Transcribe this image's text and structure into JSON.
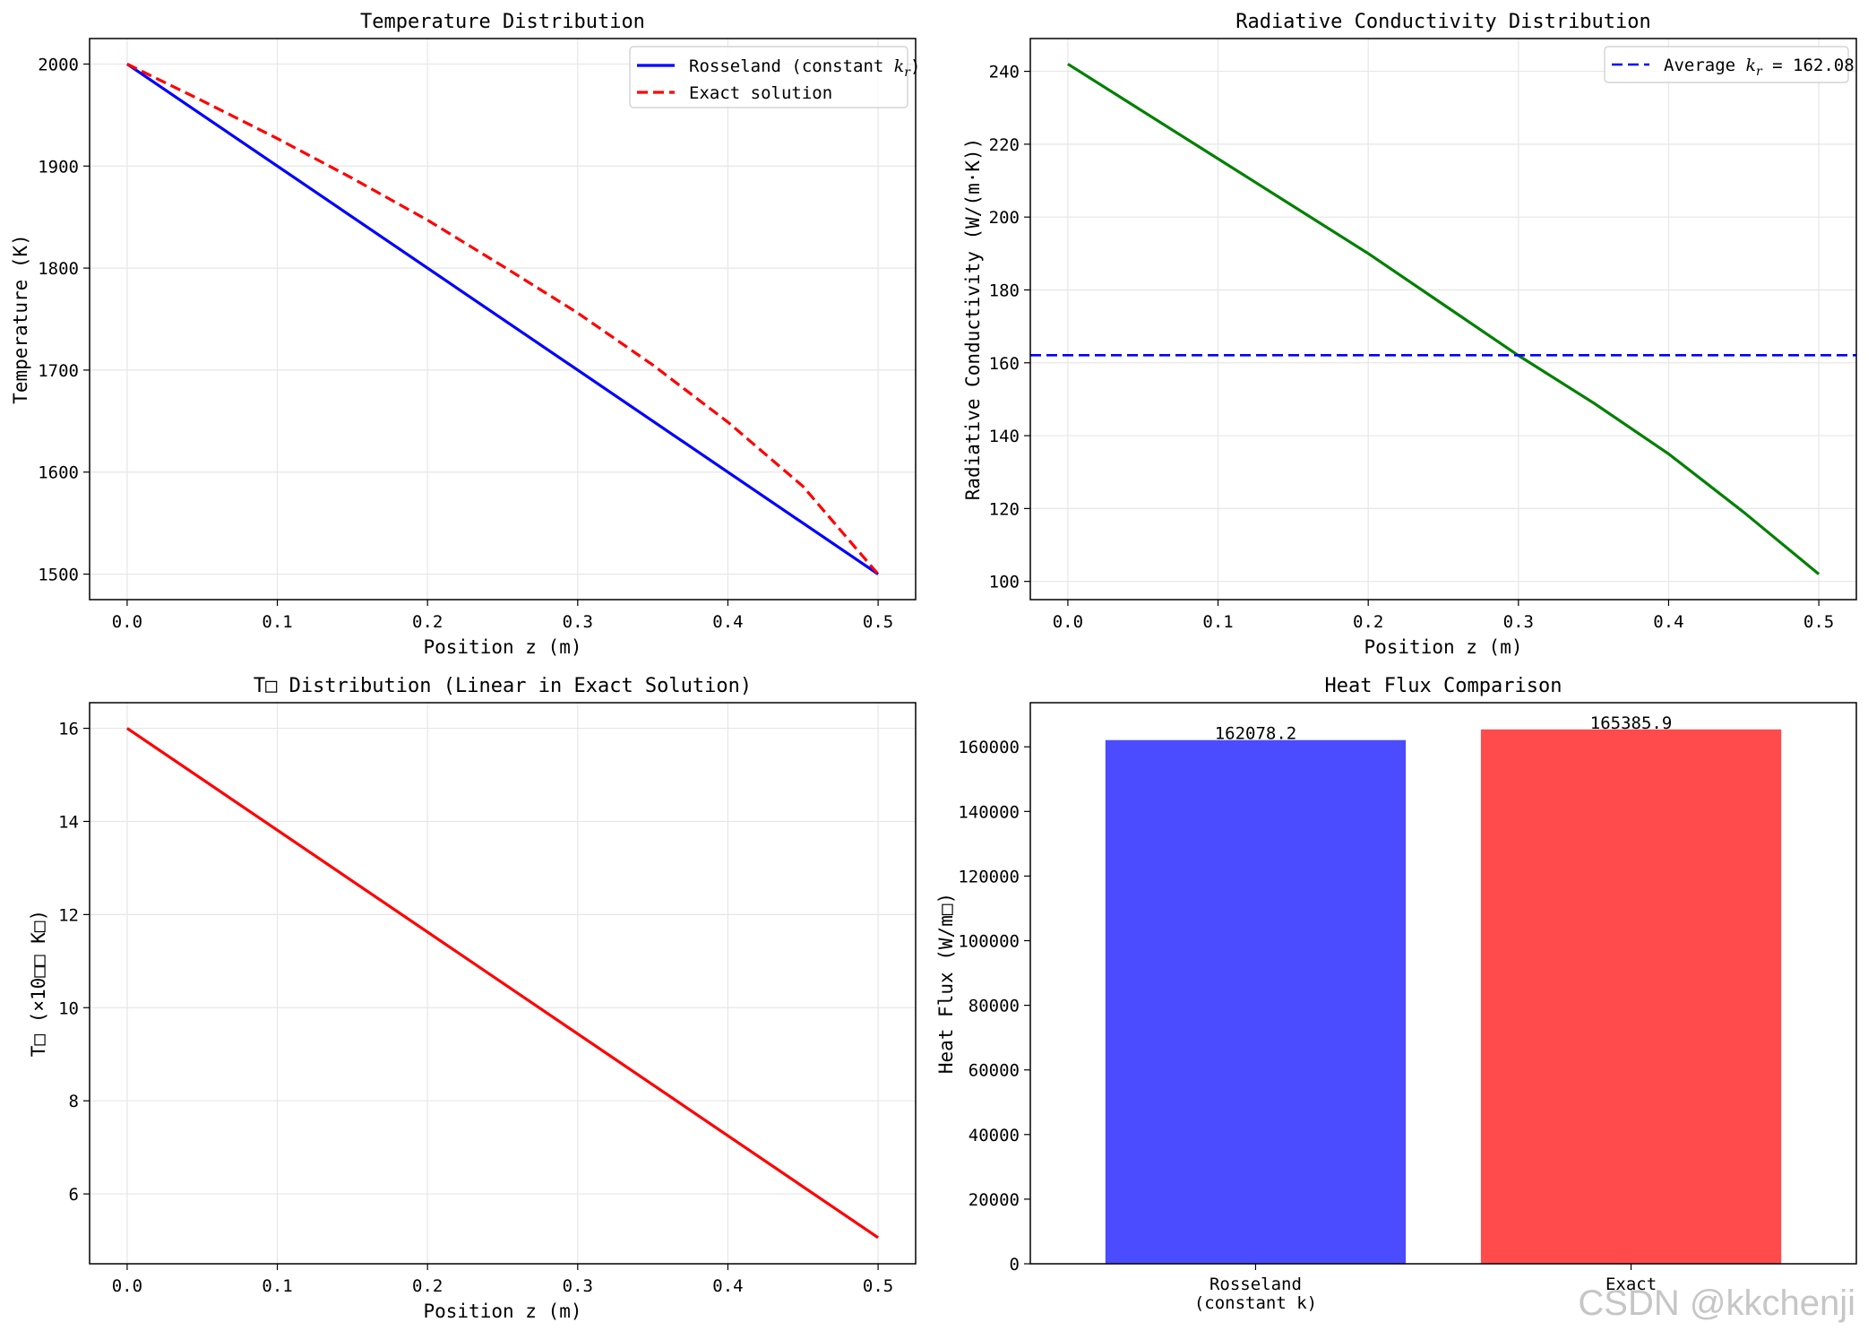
{
  "watermark": "CSDN @kkchenji",
  "colors": {
    "rosseland": "#0000ff",
    "exact": "#ff0000",
    "kr": "#008000",
    "avg": "#0000ff",
    "t4": "#ff0000",
    "bar_rosseland": "#4b4bff",
    "bar_exact": "#ff4b4b"
  },
  "chart_data": [
    {
      "type": "line",
      "title": "Temperature Distribution",
      "xlabel": "Position z (m)",
      "ylabel": "Temperature (K)",
      "xlim": [
        -0.025,
        0.525
      ],
      "ylim": [
        1475,
        2025
      ],
      "xticks": [
        0.0,
        0.1,
        0.2,
        0.3,
        0.4,
        0.5
      ],
      "xtick_labels": [
        "0.0",
        "0.1",
        "0.2",
        "0.3",
        "0.4",
        "0.5"
      ],
      "yticks": [
        1500,
        1600,
        1700,
        1800,
        1900,
        2000
      ],
      "ytick_labels": [
        "1500",
        "1600",
        "1700",
        "1800",
        "1900",
        "2000"
      ],
      "grid": true,
      "legend_position": "top-right",
      "series": [
        {
          "name": "Rosseland (constant k_r)",
          "legend_prefix": "Rosseland (constant ",
          "legend_math": "k",
          "legend_sub": "r",
          "legend_suffix": ")",
          "style": "solid",
          "x": [
            0.0,
            0.5
          ],
          "y": [
            2000,
            1500
          ]
        },
        {
          "name": "Exact solution",
          "style": "dashed",
          "x": [
            0.0,
            0.05,
            0.1,
            0.15,
            0.2,
            0.25,
            0.3,
            0.35,
            0.4,
            0.45,
            0.5
          ],
          "y": [
            2000,
            1964,
            1927,
            1888,
            1847,
            1802,
            1756,
            1705,
            1649,
            1586,
            1500
          ]
        }
      ]
    },
    {
      "type": "line",
      "title": "Radiative Conductivity Distribution",
      "xlabel": "Position z (m)",
      "ylabel": "Radiative Conductivity (W/(m·K))",
      "xlim": [
        -0.025,
        0.525
      ],
      "ylim": [
        95,
        249
      ],
      "xticks": [
        0.0,
        0.1,
        0.2,
        0.3,
        0.4,
        0.5
      ],
      "xtick_labels": [
        "0.0",
        "0.1",
        "0.2",
        "0.3",
        "0.4",
        "0.5"
      ],
      "yticks": [
        100,
        120,
        140,
        160,
        180,
        200,
        220,
        240
      ],
      "ytick_labels": [
        "100",
        "120",
        "140",
        "160",
        "180",
        "200",
        "220",
        "240"
      ],
      "grid": true,
      "legend_position": "top-right",
      "series": [
        {
          "name": "k_r",
          "style": "solid",
          "x": [
            0.0,
            0.05,
            0.1,
            0.15,
            0.2,
            0.25,
            0.3,
            0.35,
            0.4,
            0.45,
            0.5
          ],
          "y": [
            242,
            229,
            216,
            203,
            190,
            176,
            162,
            149,
            135,
            119,
            102
          ]
        }
      ],
      "hline": {
        "name": "Average k_r = 162.08",
        "legend_prefix": "Average ",
        "legend_math": "k",
        "legend_sub": "r",
        "legend_suffix": " = 162.08",
        "style": "dashed",
        "y": 162.08
      }
    },
    {
      "type": "line",
      "title": "T⁴ Distribution (Linear in Exact Solution)",
      "title_display": "T□ Distribution (Linear in Exact Solution)",
      "xlabel": "Position z (m)",
      "ylabel": "T⁴ (×10¹² K⁴)",
      "ylabel_display": "T□ (×10□□ K□)",
      "xlim": [
        -0.025,
        0.525
      ],
      "ylim": [
        4.5,
        16.55
      ],
      "xticks": [
        0.0,
        0.1,
        0.2,
        0.3,
        0.4,
        0.5
      ],
      "xtick_labels": [
        "0.0",
        "0.1",
        "0.2",
        "0.3",
        "0.4",
        "0.5"
      ],
      "yticks": [
        6,
        8,
        10,
        12,
        14,
        16
      ],
      "ytick_labels": [
        "6",
        "8",
        "10",
        "12",
        "14",
        "16"
      ],
      "grid": true,
      "series": [
        {
          "name": "T4",
          "style": "solid",
          "x": [
            0.0,
            0.5
          ],
          "y": [
            16.0,
            5.0625
          ]
        }
      ]
    },
    {
      "type": "bar",
      "title": "Heat Flux Comparison",
      "ylabel": "Heat Flux (W/m²)",
      "ylabel_display": "Heat Flux (W/m□)",
      "categories": [
        "Rosseland\n(constant k)",
        "Exact"
      ],
      "values": [
        162078.2,
        165385.9
      ],
      "value_labels": [
        "162078.2",
        "165385.9"
      ],
      "ylim": [
        0,
        173655
      ],
      "yticks": [
        0,
        20000,
        40000,
        60000,
        80000,
        100000,
        120000,
        140000,
        160000
      ],
      "ytick_labels": [
        "0",
        "20000",
        "40000",
        "60000",
        "80000",
        "100000",
        "120000",
        "140000",
        "160000"
      ],
      "grid": false
    }
  ]
}
